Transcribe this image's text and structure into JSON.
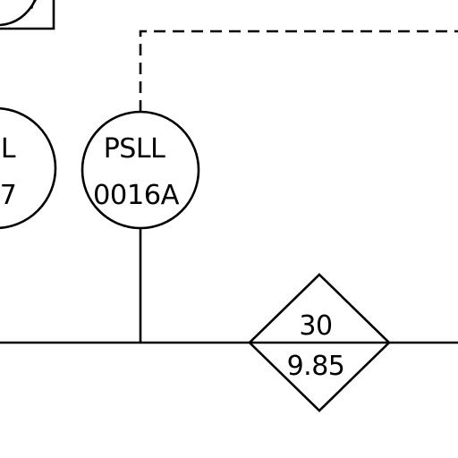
{
  "colors": {
    "line": "#000000",
    "background": "#ffffff"
  },
  "instruments": [
    {
      "id": "left-partial",
      "top": "L",
      "bottom": "7"
    },
    {
      "id": "pressure-switch",
      "top": "PSLL",
      "bottom": "0016A"
    }
  ],
  "process_tag": {
    "top": "30",
    "bottom": "9.85"
  },
  "partial_top_left": {
    "glyph": "/"
  }
}
